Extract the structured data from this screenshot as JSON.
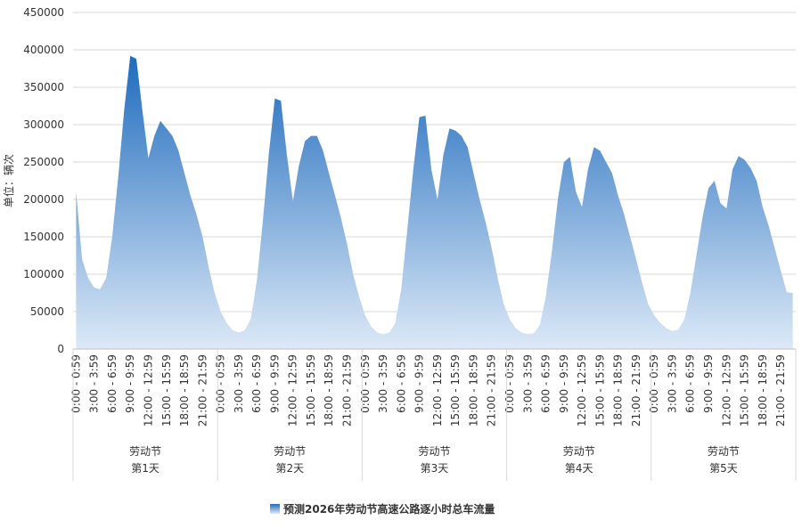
{
  "chart_data": {
    "type": "area",
    "y_label": "单位：辆次",
    "categories": [
      "0:00 - 0:59",
      null,
      null,
      "3:00 - 3:59",
      null,
      null,
      "6:00 - 6:59",
      null,
      null,
      "9:00 - 9:59",
      null,
      null,
      "12:00 - 12:59",
      null,
      null,
      "15:00 - 15:59",
      null,
      null,
      "18:00 - 18:59",
      null,
      null,
      "21:00 - 21:59",
      null,
      null,
      "0:00 - 0:59",
      null,
      null,
      "3:00 - 3:59",
      null,
      null,
      "6:00 - 6:59",
      null,
      null,
      "9:00 - 9:59",
      null,
      null,
      "12:00 - 12:59",
      null,
      null,
      "15:00 - 15:59",
      null,
      null,
      "18:00 - 18:59",
      null,
      null,
      "21:00 - 21:59",
      null,
      null,
      "0:00 - 0:59",
      null,
      null,
      "3:00 - 3:59",
      null,
      null,
      "6:00 - 6:59",
      null,
      null,
      "9:00 - 9:59",
      null,
      null,
      "12:00 - 12:59",
      null,
      null,
      "15:00 - 15:59",
      null,
      null,
      "18:00 - 18:59",
      null,
      null,
      "21:00 - 21:59",
      null,
      null,
      "0:00 - 0:59",
      null,
      null,
      "3:00 - 3:59",
      null,
      null,
      "6:00 - 6:59",
      null,
      null,
      "9:00 - 9:59",
      null,
      null,
      "12:00 - 12:59",
      null,
      null,
      "15:00 - 15:59",
      null,
      null,
      "18:00 - 18:59",
      null,
      null,
      "21:00 - 21:59",
      null,
      null,
      "0:00 - 0:59",
      null,
      null,
      "3:00 - 3:59",
      null,
      null,
      "6:00 - 6:59",
      null,
      null,
      "9:00 - 9:59",
      null,
      null,
      "12:00 - 12:59",
      null,
      null,
      "15:00 - 15:59",
      null,
      null,
      "18:00 - 18:59",
      null,
      null,
      "21:00 - 21:59",
      null,
      null
    ],
    "groups": [
      {
        "label": "劳动节",
        "sub": "第1天"
      },
      {
        "label": "劳动节",
        "sub": "第2天"
      },
      {
        "label": "劳动节",
        "sub": "第3天"
      },
      {
        "label": "劳动节",
        "sub": "第4天"
      },
      {
        "label": "劳动节",
        "sub": "第5天"
      }
    ],
    "series": [
      {
        "name": "预测2026年劳动节高速公路逐小时总车流量",
        "color": "#2f78c4",
        "values": [
          210000,
          120000,
          95000,
          82000,
          80000,
          95000,
          150000,
          230000,
          320000,
          392000,
          388000,
          320000,
          255000,
          285000,
          305000,
          295000,
          285000,
          265000,
          235000,
          205000,
          180000,
          150000,
          110000,
          75000,
          50000,
          35000,
          25000,
          22000,
          25000,
          40000,
          90000,
          170000,
          260000,
          335000,
          332000,
          260000,
          198000,
          245000,
          278000,
          285000,
          285000,
          265000,
          235000,
          205000,
          175000,
          140000,
          100000,
          70000,
          45000,
          30000,
          22000,
          20000,
          22000,
          35000,
          80000,
          160000,
          240000,
          310000,
          312000,
          240000,
          200000,
          260000,
          295000,
          292000,
          285000,
          270000,
          235000,
          200000,
          170000,
          135000,
          95000,
          60000,
          40000,
          28000,
          22000,
          20000,
          21000,
          32000,
          70000,
          130000,
          200000,
          250000,
          257000,
          210000,
          190000,
          240000,
          270000,
          265000,
          250000,
          235000,
          205000,
          180000,
          150000,
          120000,
          88000,
          60000,
          45000,
          35000,
          28000,
          24000,
          26000,
          40000,
          75000,
          125000,
          175000,
          215000,
          225000,
          195000,
          188000,
          240000,
          258000,
          253000,
          242000,
          225000,
          190000,
          165000,
          135000,
          105000,
          76000,
          75000
        ]
      }
    ],
    "ylim": [
      0,
      450000
    ],
    "yticks": [
      0,
      50000,
      100000,
      150000,
      200000,
      250000,
      300000,
      350000,
      400000,
      450000
    ],
    "grid": true
  }
}
